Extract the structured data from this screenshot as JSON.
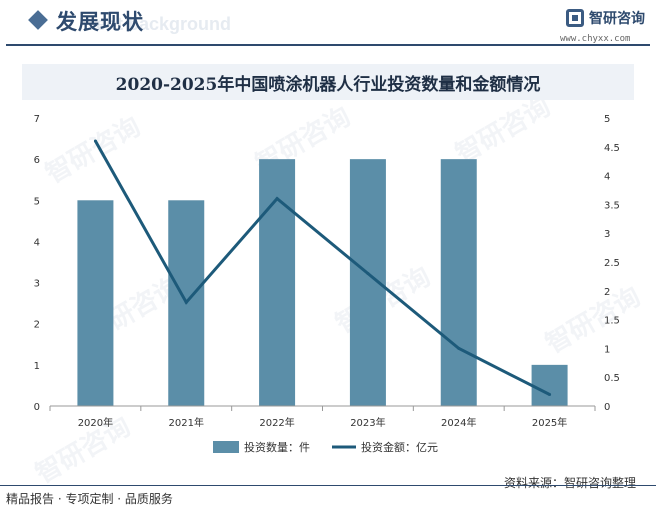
{
  "header": {
    "section_title": "发展现状",
    "ghost_text": "ent background",
    "brand_name": "智研咨询",
    "brand_url": "www.chyxx.com",
    "icons": {
      "diamond": "diamond-icon",
      "logo": "brand-logo-icon"
    }
  },
  "watermark_text": "智研咨询",
  "chart_data": {
    "type": "bar",
    "title": "2020-2025年中国喷涂机器人行业投资数量和金额情况",
    "categories": [
      "2020年",
      "2021年",
      "2022年",
      "2023年",
      "2024年",
      "2025年"
    ],
    "series": [
      {
        "name": "投资数量：件",
        "type": "bar",
        "axis": "left",
        "color": "#5b8ea8",
        "values": [
          5,
          5,
          6,
          6,
          6,
          1
        ]
      },
      {
        "name": "投资金额：亿元",
        "type": "line",
        "axis": "right",
        "color": "#1d5a7a",
        "values": [
          4.6,
          1.8,
          3.6,
          2.3,
          1.0,
          0.2
        ]
      }
    ],
    "y_left": {
      "min": 0,
      "max": 7,
      "ticks": [
        "0",
        "1",
        "2",
        "3",
        "4",
        "5",
        "6",
        "7"
      ]
    },
    "y_right": {
      "min": 0,
      "max": 5,
      "ticks": [
        "0",
        "0.5",
        "1",
        "1.5",
        "2",
        "2.5",
        "3",
        "3.5",
        "4",
        "4.5",
        "5"
      ]
    },
    "legend_position": "bottom",
    "grid": false
  },
  "footer": {
    "source": "资料来源：智研咨询整理",
    "slogan": "精品报告 · 专项定制 · 品质服务"
  }
}
